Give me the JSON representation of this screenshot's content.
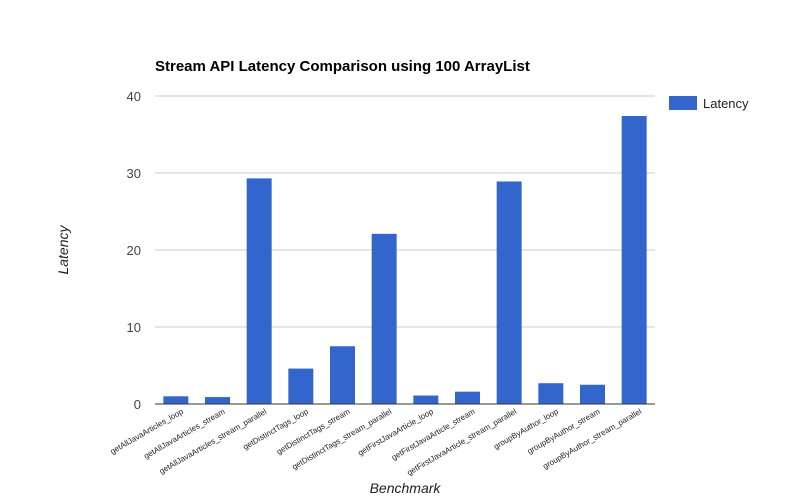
{
  "chart_data": {
    "type": "bar",
    "title": "Stream API Latency Comparison using 100 ArrayList",
    "xlabel": "Benchmark",
    "ylabel": "Latency",
    "ylim": [
      0,
      40
    ],
    "yticks": [
      0,
      10,
      20,
      30,
      40
    ],
    "grid": true,
    "legend_position": "top-right",
    "categories": [
      "getAllJavaArticles_loop",
      "getAllJavaArticles_stream",
      "getAllJavaArticles_stream_parallel",
      "getDistinctTags_loop",
      "getDistinctTags_stream",
      "getDistinctTags_stream_parallel",
      "getFirstJavaArticle_loop",
      "getFirstJavaArticle_stream",
      "getFirstJavaArticle_stream_parallel",
      "groupByAuthor_loop",
      "groupByAuthor_stream",
      "groupByAuthor_stream_parallel"
    ],
    "series": [
      {
        "name": "Latency",
        "color": "#3366cc",
        "values": [
          1.0,
          0.9,
          29.3,
          4.6,
          7.5,
          22.1,
          1.1,
          1.6,
          28.9,
          2.7,
          2.5,
          37.4
        ]
      }
    ]
  }
}
